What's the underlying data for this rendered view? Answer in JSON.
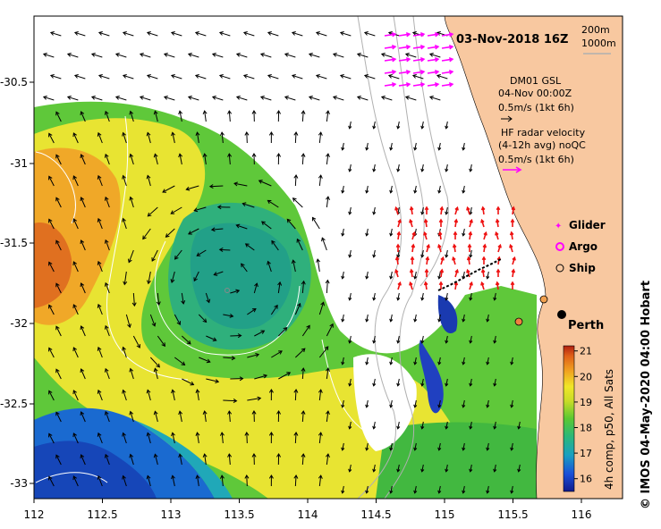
{
  "title": "03-Nov-2018 16Z",
  "depth_legend": [
    "200m",
    "1000m"
  ],
  "dm01": {
    "line1": "DM01 GSL",
    "line2": "04-Nov 00:00Z",
    "scale": "0.5m/s (1kt 6h)"
  },
  "hf_radar": {
    "line1": "HF radar velocity",
    "line2": "(4-12h avg) noQC",
    "scale": "0.5m/s (1kt 6h)"
  },
  "legend": {
    "glider": "Glider",
    "argo": "Argo",
    "ship": "Ship"
  },
  "place": "Perth",
  "colorbar": {
    "label": "4h comp, p50, All Sats",
    "ticks": [
      21,
      20,
      19,
      18,
      17,
      16
    ],
    "min": 15.5,
    "max": 21.2
  },
  "credit": "© IMOS 04-May-2020 04:00 Hobart",
  "x_ticks": [
    "112",
    "112.5",
    "113",
    "113.5",
    "114",
    "114.5",
    "115",
    "115.5",
    "116"
  ],
  "y_ticks": [
    "-30.5",
    "-31",
    "-31.5",
    "-32",
    "-32.5",
    "-33"
  ],
  "colors": {
    "land": "#f8c8a0",
    "gsl_arrow": "#000000",
    "radar_arrow": "#ff00ff",
    "radar_arrow_red": "#ee1111",
    "contour": "#b0b0b0",
    "sst_contour": "#ffffff"
  }
}
